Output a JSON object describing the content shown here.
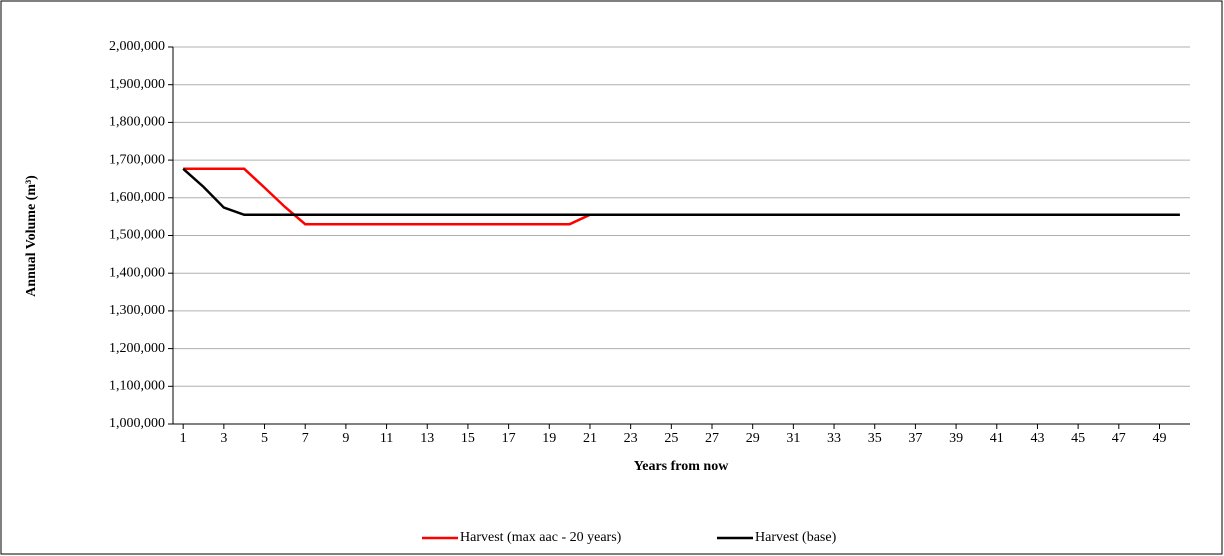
{
  "chart_data": {
    "type": "line",
    "x_label": "Years from now",
    "y_label": "Annual Volume (m³)",
    "x": [
      1,
      2,
      3,
      4,
      5,
      6,
      7,
      8,
      9,
      10,
      11,
      12,
      13,
      14,
      15,
      16,
      17,
      18,
      19,
      20,
      21,
      22,
      23,
      24,
      25,
      26,
      27,
      28,
      29,
      30,
      31,
      32,
      33,
      34,
      35,
      36,
      37,
      38,
      39,
      40,
      41,
      42,
      43,
      44,
      45,
      46,
      47,
      48,
      49,
      50
    ],
    "xlim": [
      0.5,
      50.5
    ],
    "xticks": [
      1,
      3,
      5,
      7,
      9,
      11,
      13,
      15,
      17,
      19,
      21,
      23,
      25,
      27,
      29,
      31,
      33,
      35,
      37,
      39,
      41,
      43,
      45,
      47,
      49
    ],
    "ylim": [
      1000000,
      2000000
    ],
    "yticks": [
      {
        "value": 1000000,
        "label": "1,000,000"
      },
      {
        "value": 1100000,
        "label": "1,100,000"
      },
      {
        "value": 1200000,
        "label": "1,200,000"
      },
      {
        "value": 1300000,
        "label": "1,300,000"
      },
      {
        "value": 1400000,
        "label": "1,400,000"
      },
      {
        "value": 1500000,
        "label": "1,500,000"
      },
      {
        "value": 1600000,
        "label": "1,600,000"
      },
      {
        "value": 1700000,
        "label": "1,700,000"
      },
      {
        "value": 1800000,
        "label": "1,800,000"
      },
      {
        "value": 1900000,
        "label": "1,900,000"
      },
      {
        "value": 2000000,
        "label": "2,000,000"
      }
    ],
    "grid": true,
    "legend": "bottom",
    "series": [
      {
        "name": "Harvest (max aac - 20 years)",
        "color": "#ff0000",
        "values": [
          1677000,
          1677000,
          1677000,
          1677000,
          1627000,
          1576000,
          1530000,
          1530000,
          1530000,
          1530000,
          1530000,
          1530000,
          1530000,
          1530000,
          1530000,
          1530000,
          1530000,
          1530000,
          1530000,
          1530000,
          1555000,
          1555000,
          1555000,
          1555000,
          1555000,
          1555000,
          1555000,
          1555000,
          1555000,
          1555000,
          1555000,
          1555000,
          1555000,
          1555000,
          1555000,
          1555000,
          1555000,
          1555000,
          1555000,
          1555000,
          1555000,
          1555000,
          1555000,
          1555000,
          1555000,
          1555000,
          1555000,
          1555000,
          1555000,
          1555000
        ]
      },
      {
        "name": "Harvest (base)",
        "color": "#000000",
        "values": [
          1677000,
          1629000,
          1574000,
          1555000,
          1555000,
          1555000,
          1555000,
          1555000,
          1555000,
          1555000,
          1555000,
          1555000,
          1555000,
          1555000,
          1555000,
          1555000,
          1555000,
          1555000,
          1555000,
          1555000,
          1555000,
          1555000,
          1555000,
          1555000,
          1555000,
          1555000,
          1555000,
          1555000,
          1555000,
          1555000,
          1555000,
          1555000,
          1555000,
          1555000,
          1555000,
          1555000,
          1555000,
          1555000,
          1555000,
          1555000,
          1555000,
          1555000,
          1555000,
          1555000,
          1555000,
          1555000,
          1555000,
          1555000,
          1555000,
          1555000
        ]
      }
    ]
  }
}
